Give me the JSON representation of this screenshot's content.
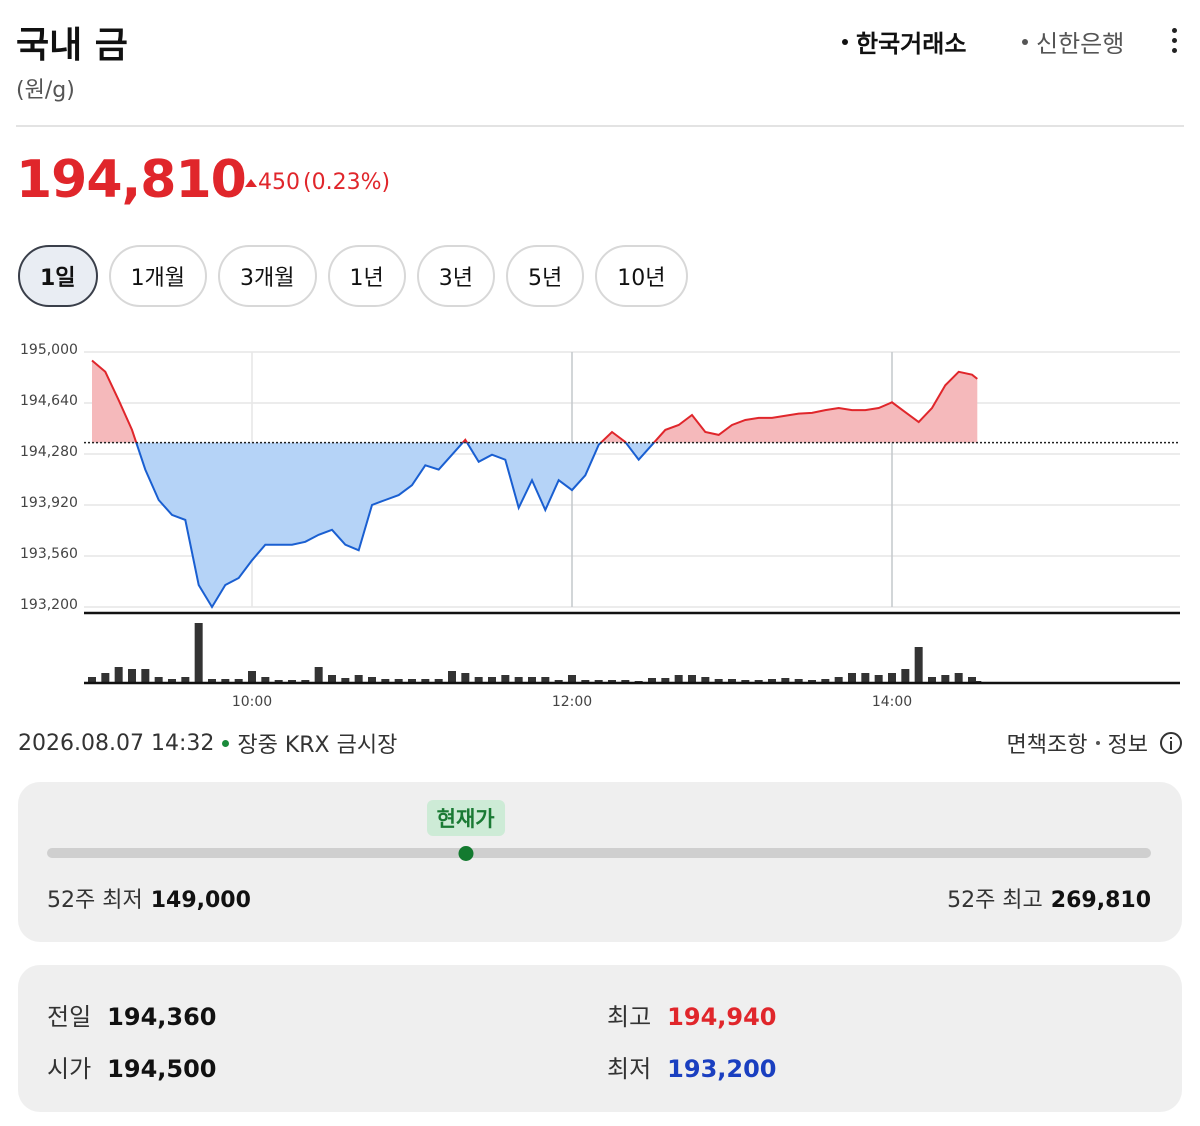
{
  "header": {
    "title": "국내 금",
    "unit": "(원/g)",
    "sources": [
      "한국거래소",
      "신한은행"
    ],
    "active_source": 0
  },
  "price": {
    "value": 194810,
    "value_label": "194,810",
    "change": 450,
    "change_percent_label": "(0.23%)"
  },
  "tabs": [
    "1일",
    "1개월",
    "3개월",
    "1년",
    "3년",
    "5년",
    "10년"
  ],
  "selected_tab": 0,
  "chart_data": {
    "type": "line",
    "x": [
      "09:00",
      "09:05",
      "09:10",
      "09:15",
      "09:20",
      "09:25",
      "09:30",
      "09:35",
      "09:40",
      "09:45",
      "09:50",
      "09:55",
      "10:00",
      "10:05",
      "10:10",
      "10:15",
      "10:20",
      "10:25",
      "10:30",
      "10:35",
      "10:40",
      "10:45",
      "10:50",
      "10:55",
      "11:00",
      "11:05",
      "11:10",
      "11:15",
      "11:20",
      "11:25",
      "11:30",
      "11:35",
      "11:40",
      "11:45",
      "11:50",
      "11:55",
      "12:00",
      "12:05",
      "12:10",
      "12:15",
      "12:20",
      "12:25",
      "12:30",
      "12:35",
      "12:40",
      "12:45",
      "12:50",
      "12:55",
      "13:00",
      "13:05",
      "13:10",
      "13:15",
      "13:20",
      "13:25",
      "13:30",
      "13:35",
      "13:40",
      "13:45",
      "13:50",
      "13:55",
      "14:00",
      "14:05",
      "14:10",
      "14:15",
      "14:20",
      "14:25",
      "14:30",
      "14:32"
    ],
    "values": [
      194940,
      194860,
      194660,
      194450,
      194170,
      193955,
      193850,
      193815,
      193355,
      193200,
      193355,
      193405,
      193530,
      193640,
      193640,
      193640,
      193660,
      193710,
      193745,
      193640,
      193600,
      193920,
      193955,
      193990,
      194060,
      194200,
      194170,
      194275,
      194380,
      194225,
      194275,
      194240,
      193900,
      194095,
      193885,
      194095,
      194025,
      194130,
      194345,
      194435,
      194365,
      194240,
      194345,
      194450,
      194485,
      194555,
      194435,
      194415,
      194485,
      194520,
      194535,
      194535,
      194550,
      194565,
      194570,
      194590,
      194605,
      194590,
      194590,
      194605,
      194645,
      194575,
      194505,
      194605,
      194765,
      194860,
      194840,
      194810
    ],
    "baseline": 194360,
    "up_color": "#e0262b",
    "up_fill": "#f5b9bb",
    "down_color": "#1a5fd1",
    "down_fill": "#b5d3f7",
    "xlim": [
      "08:57",
      "15:48"
    ],
    "xticks": [
      "10:00",
      "12:00",
      "14:00"
    ],
    "ylim": [
      193200,
      195000
    ],
    "yticks": [
      {
        "value": 193200,
        "label": "193,200"
      },
      {
        "value": 193560,
        "label": "193,560"
      },
      {
        "value": 193920,
        "label": "193,920"
      },
      {
        "value": 194280,
        "label": "194,280"
      },
      {
        "value": 194640,
        "label": "194,640"
      },
      {
        "value": 195000,
        "label": "195,000"
      }
    ],
    "grid": true,
    "volume": {
      "values": [
        6,
        10,
        16,
        14,
        14,
        6,
        4,
        6,
        60,
        4,
        4,
        4,
        12,
        6,
        3,
        3,
        3,
        16,
        8,
        5,
        8,
        6,
        4,
        4,
        4,
        4,
        4,
        12,
        10,
        6,
        6,
        8,
        6,
        6,
        6,
        3,
        8,
        3,
        3,
        3,
        3,
        2,
        5,
        5,
        8,
        8,
        6,
        4,
        4,
        3,
        3,
        4,
        5,
        4,
        3,
        4,
        6,
        10,
        10,
        8,
        10,
        14,
        36,
        6,
        8,
        10,
        6,
        2
      ],
      "ylim": [
        0,
        60
      ],
      "color": "#333333"
    }
  },
  "status": {
    "timestamp": "2026.08.07 14:32",
    "state": "장중 KRX 금시장"
  },
  "links": [
    "면책조항",
    "정보"
  ],
  "range52": {
    "badge": "현재가",
    "low": {
      "label": "52주 최저",
      "value": 149000,
      "value_label": "149,000"
    },
    "high": {
      "label": "52주 최고",
      "value": 269810,
      "value_label": "269,810"
    }
  },
  "stats": [
    [
      "전일",
      "194,360"
    ],
    [
      "시가",
      "194,500"
    ],
    [
      "최고",
      "194,940"
    ],
    [
      "최저",
      "193,200"
    ]
  ]
}
